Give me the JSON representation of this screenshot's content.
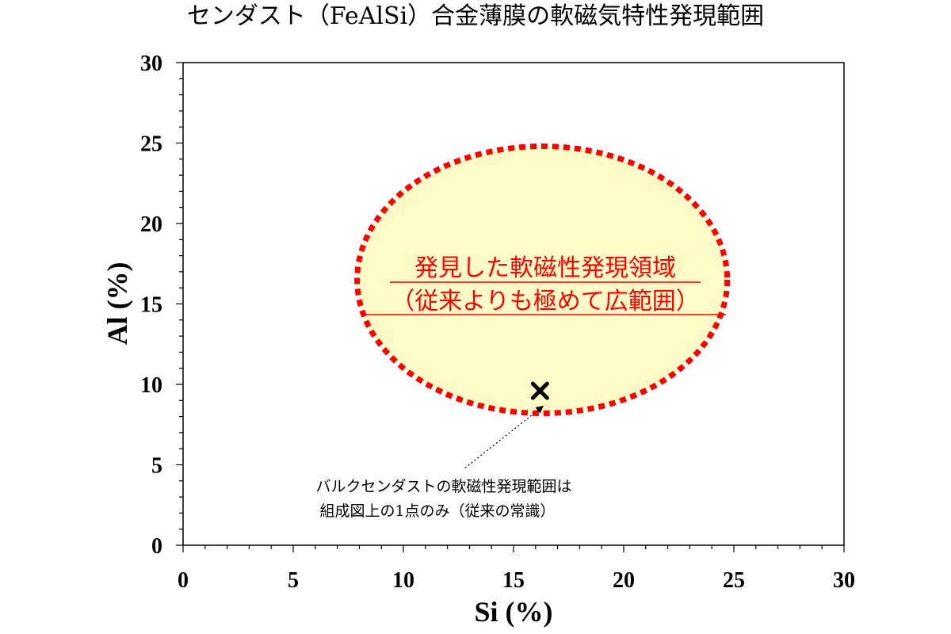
{
  "chart_data": {
    "type": "scatter",
    "title": "センダスト（FeAlSi）合金薄膜の軟磁気特性発現範囲",
    "xlabel": "Si (%)",
    "ylabel": "Al (%)",
    "xlim": [
      0,
      30
    ],
    "ylim": [
      0,
      30
    ],
    "xticks": [
      0,
      5,
      10,
      15,
      20,
      25,
      30
    ],
    "yticks": [
      0,
      5,
      10,
      15,
      20,
      25,
      30
    ],
    "grid": false,
    "series": [
      {
        "name": "バルクセンダスト",
        "marker": "x",
        "points": [
          {
            "x": 16.2,
            "y": 9.6
          }
        ]
      }
    ],
    "region": {
      "label_line1": "発見した軟磁性発現領域",
      "label_line2": "（従来よりも極めて広範囲）",
      "center": {
        "x": 16.3,
        "y": 16.5
      },
      "radius_x": 8.4,
      "radius_y": 8.3,
      "fill": "#fffbc8",
      "stroke": "#ff0000",
      "style": "dotted"
    },
    "annotation": {
      "line1": "バルクセンダストの軟磁性発現範囲は",
      "line2": "組成図上の1点のみ（従来の常識）",
      "arrow_from": {
        "x": 12.8,
        "y": 4.8
      },
      "arrow_to": {
        "x": 16.3,
        "y": 8.6
      }
    }
  },
  "colors": {
    "region_text": "#ff0000",
    "axis": "#000000",
    "marker": "#000000"
  }
}
